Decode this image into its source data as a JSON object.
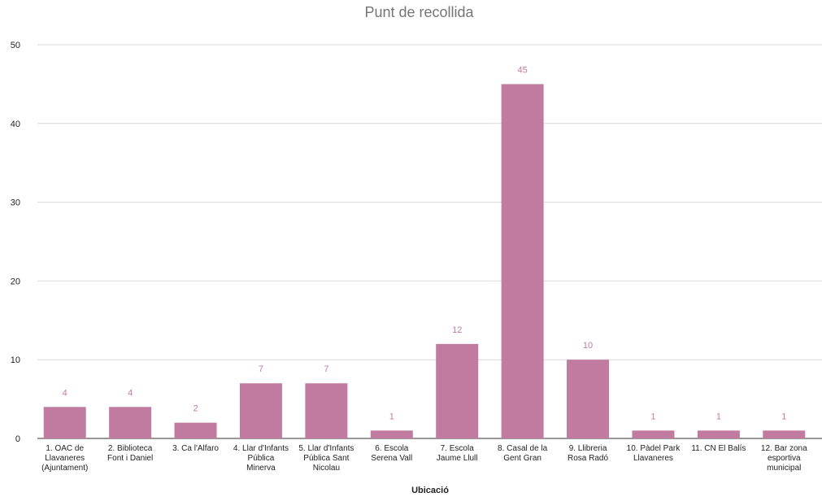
{
  "chart_data": {
    "type": "bar",
    "title": "Punt de recollida",
    "xlabel": "Ubicació",
    "ylabel": "",
    "ylim": [
      0,
      50
    ],
    "yticks": [
      0,
      10,
      20,
      30,
      40,
      50
    ],
    "grid": true,
    "legend": "none",
    "bar_color": "#c27ba0",
    "label_color": "#c27ba0",
    "categories": [
      "1. OAC de Llavaneres (Ajuntament)",
      "2. Biblioteca Font i Daniel",
      "3. Ca l'Alfaro",
      "4. Llar d'Infants Pública Minerva",
      "5. Llar d'Infants Pública Sant Nicolau",
      "6. Escola Serena Vall",
      "7. Escola Jaume Llull",
      "8. Casal de la Gent Gran",
      "9. Llibreria Rosa Radó",
      "10. Pàdel Park Llavaneres",
      "11. CN El Balís",
      "12. Bar zona esportiva municipal"
    ],
    "category_lines": [
      [
        "1. OAC de",
        "Llavaneres",
        "(Ajuntament)"
      ],
      [
        "2. Biblioteca",
        "Font i Daniel"
      ],
      [
        "3. Ca l'Alfaro"
      ],
      [
        "4. Llar d'Infants",
        "Pública",
        "Minerva"
      ],
      [
        "5. Llar d'Infants",
        "Pública Sant",
        "Nicolau"
      ],
      [
        "6. Escola",
        "Serena Vall"
      ],
      [
        "7. Escola",
        "Jaume Llull"
      ],
      [
        "8. Casal de la",
        "Gent Gran"
      ],
      [
        "9. Llibreria",
        "Rosa Radó"
      ],
      [
        "10. Pàdel Park",
        "Llavaneres"
      ],
      [
        "11. CN El Balís"
      ],
      [
        "12. Bar zona",
        "esportiva",
        "municipal"
      ]
    ],
    "values": [
      4,
      4,
      2,
      7,
      7,
      1,
      12,
      45,
      10,
      1,
      1,
      1
    ]
  }
}
